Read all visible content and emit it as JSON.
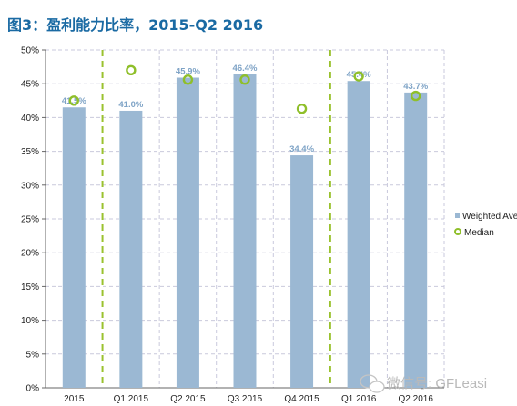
{
  "title": "图3：盈利能力比率，2015-Q2 2016",
  "chart_data": {
    "type": "bar",
    "categories": [
      "2015",
      "Q1 2015",
      "Q2 2015",
      "Q3 2015",
      "Q4 2015",
      "Q1 2016",
      "Q2 2016"
    ],
    "series": [
      {
        "name": "Weighted Ave",
        "type": "bar",
        "values": [
          41.5,
          41.0,
          45.9,
          46.4,
          34.4,
          45.4,
          43.7
        ],
        "labels": [
          "41.5%",
          "41.0%",
          "45.9%",
          "46.4%",
          "34.4%",
          "45.4%",
          "43.7%"
        ],
        "color": "#9bb8d3"
      },
      {
        "name": "Median",
        "type": "scatter",
        "values": [
          42.5,
          47.0,
          45.6,
          45.6,
          41.3,
          46.1,
          43.2
        ],
        "color": "#8fbf2a"
      }
    ],
    "ylim": [
      0,
      50
    ],
    "yticks": [
      "0%",
      "5%",
      "10%",
      "15%",
      "20%",
      "25%",
      "30%",
      "35%",
      "40%",
      "45%",
      "50%"
    ],
    "grid": true,
    "legend": "right"
  },
  "watermark": {
    "text": "微信号: GFLeasi"
  }
}
